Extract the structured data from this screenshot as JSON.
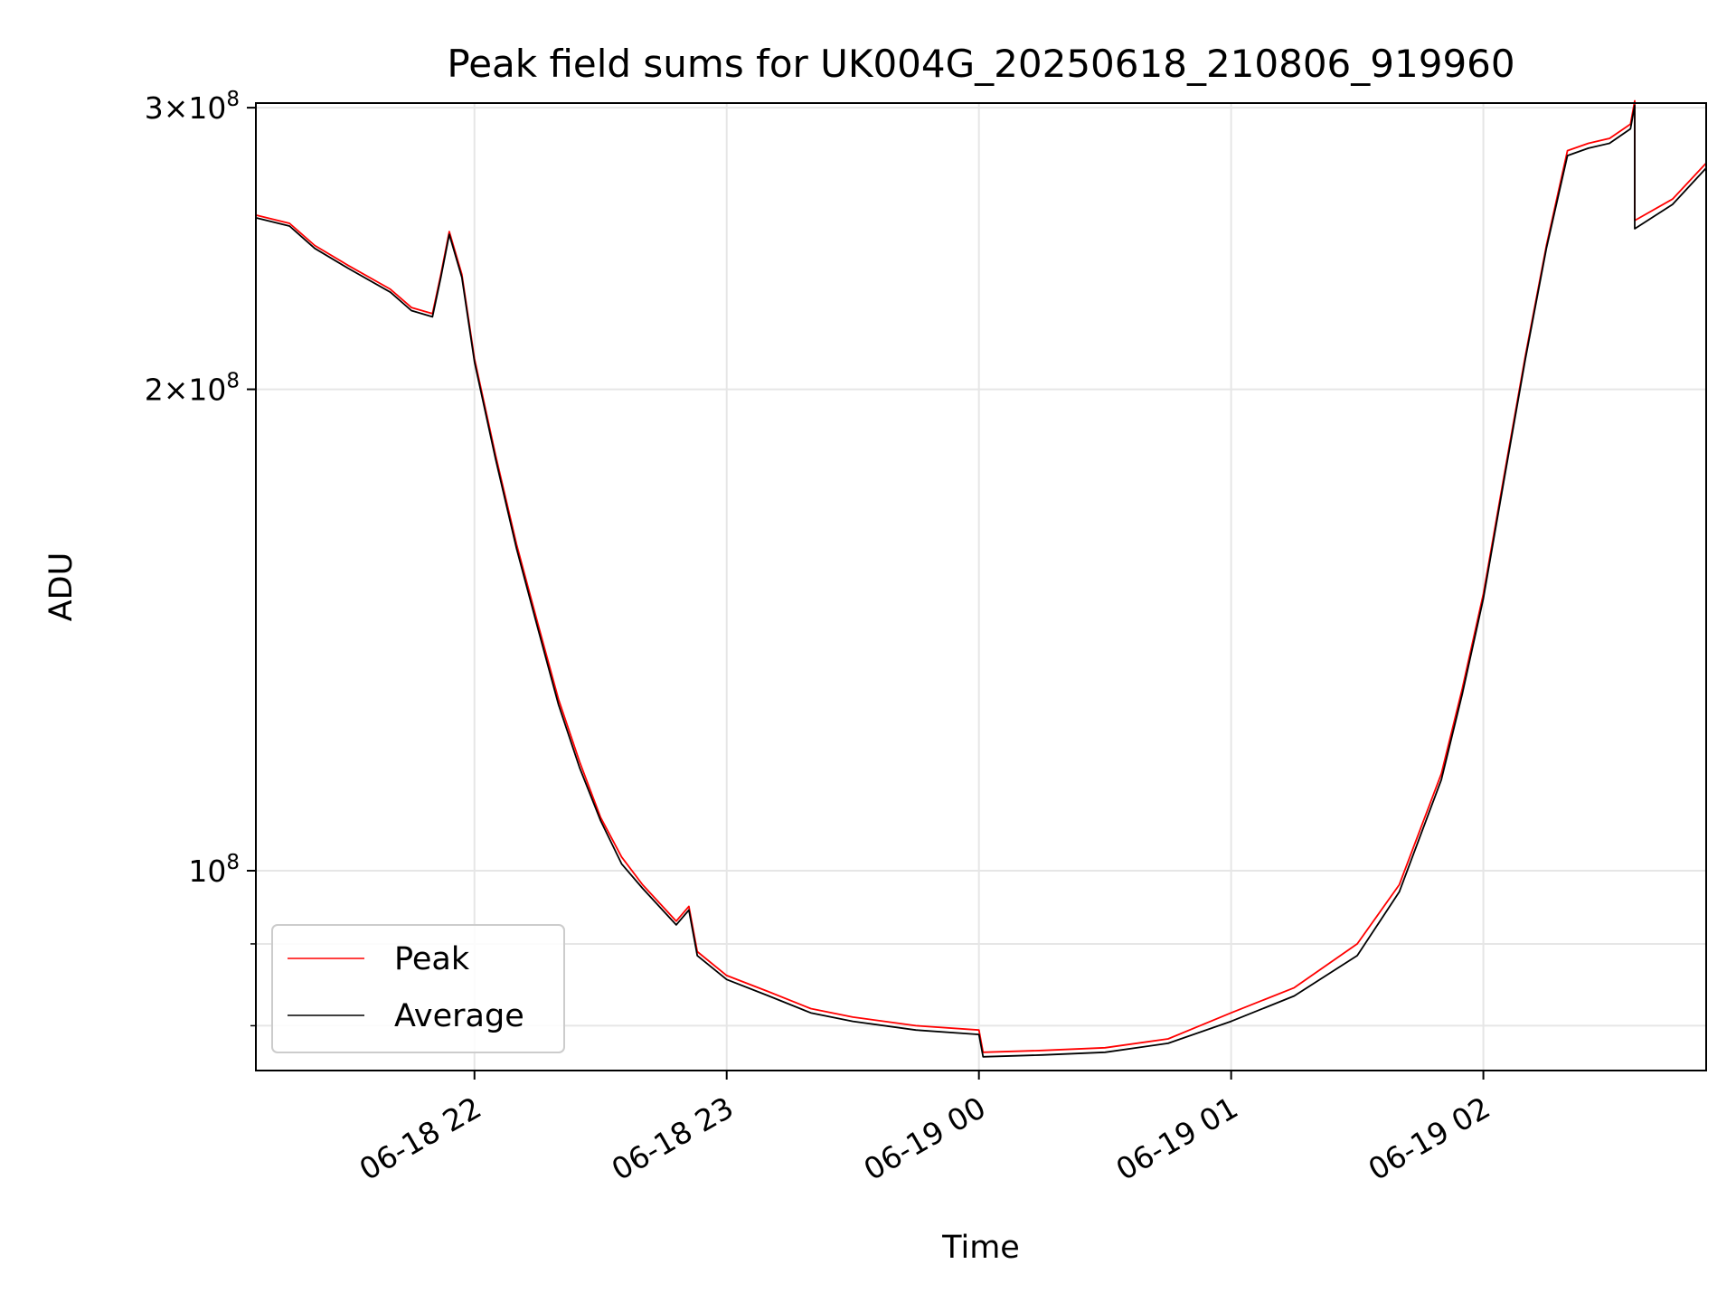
{
  "chart_data": {
    "type": "line",
    "title": "Peak field sums for UK004G_20250618_210806_919960",
    "xlabel": "Time",
    "ylabel": "ADU",
    "x_range": [
      "2025-06-18 21:08",
      "2025-06-19 02:53"
    ],
    "ylim": [
      75000000,
      302000000
    ],
    "y_scale": "log",
    "grid": true,
    "legend_position": "lower-left",
    "x_ticks": [
      {
        "value": "2025-06-18 22:00",
        "label": "06-18 22"
      },
      {
        "value": "2025-06-18 23:00",
        "label": "06-18 23"
      },
      {
        "value": "2025-06-19 00:00",
        "label": "06-19 00"
      },
      {
        "value": "2025-06-19 01:00",
        "label": "06-19 01"
      },
      {
        "value": "2025-06-19 02:00",
        "label": "06-19 02"
      }
    ],
    "y_ticks": [
      {
        "value": 100000000,
        "base": "10",
        "exponent": "8",
        "prefix": ""
      },
      {
        "value": 200000000,
        "base": "10",
        "exponent": "8",
        "prefix": "2×"
      },
      {
        "value": 300000000,
        "base": "10",
        "exponent": "8",
        "prefix": "3×"
      }
    ],
    "y_minor_ticks": [
      80000000,
      90000000
    ],
    "series": [
      {
        "name": "Peak",
        "color": "#ff0000",
        "points": [
          [
            "2025-06-18 21:08",
            257000000
          ],
          [
            "2025-06-18 21:16",
            254000000
          ],
          [
            "2025-06-18 21:22",
            246000000
          ],
          [
            "2025-06-18 21:30",
            239000000
          ],
          [
            "2025-06-18 21:40",
            231000000
          ],
          [
            "2025-06-18 21:45",
            225000000
          ],
          [
            "2025-06-18 21:50",
            223000000
          ],
          [
            "2025-06-18 21:52",
            236000000
          ],
          [
            "2025-06-18 21:54",
            251000000
          ],
          [
            "2025-06-18 21:57",
            236000000
          ],
          [
            "2025-06-18 22:00",
            209000000
          ],
          [
            "2025-06-18 22:05",
            182000000
          ],
          [
            "2025-06-18 22:10",
            160000000
          ],
          [
            "2025-06-18 22:15",
            143000000
          ],
          [
            "2025-06-18 22:20",
            128000000
          ],
          [
            "2025-06-18 22:25",
            117000000
          ],
          [
            "2025-06-18 22:30",
            108000000
          ],
          [
            "2025-06-18 22:35",
            102000000
          ],
          [
            "2025-06-18 22:40",
            98000000
          ],
          [
            "2025-06-18 22:48",
            93000000
          ],
          [
            "2025-06-18 22:51",
            95000000
          ],
          [
            "2025-06-18 22:53",
            89000000
          ],
          [
            "2025-06-18 23:00",
            86000000
          ],
          [
            "2025-06-18 23:10",
            84000000
          ],
          [
            "2025-06-18 23:20",
            82000000
          ],
          [
            "2025-06-18 23:30",
            81000000
          ],
          [
            "2025-06-18 23:45",
            80000000
          ],
          [
            "2025-06-19 00:00",
            79500000
          ],
          [
            "2025-06-19 00:01",
            77000000
          ],
          [
            "2025-06-19 00:15",
            77200000
          ],
          [
            "2025-06-19 00:30",
            77500000
          ],
          [
            "2025-06-19 00:45",
            78500000
          ],
          [
            "2025-06-19 01:00",
            81500000
          ],
          [
            "2025-06-19 01:15",
            84500000
          ],
          [
            "2025-06-19 01:30",
            90000000
          ],
          [
            "2025-06-19 01:40",
            98000000
          ],
          [
            "2025-06-19 01:50",
            115000000
          ],
          [
            "2025-06-19 01:55",
            130000000
          ],
          [
            "2025-06-19 02:00",
            149000000
          ],
          [
            "2025-06-19 02:05",
            177000000
          ],
          [
            "2025-06-19 02:10",
            210000000
          ],
          [
            "2025-06-19 02:15",
            246000000
          ],
          [
            "2025-06-19 02:20",
            282000000
          ],
          [
            "2025-06-19 02:25",
            285000000
          ],
          [
            "2025-06-19 02:30",
            287000000
          ],
          [
            "2025-06-19 02:35",
            293000000
          ],
          [
            "2025-06-19 02:36",
            303000000
          ],
          [
            "2025-06-19 02:36",
            255000000
          ],
          [
            "2025-06-19 02:45",
            263000000
          ],
          [
            "2025-06-19 02:53",
            277000000
          ]
        ]
      },
      {
        "name": "Average",
        "color": "#000000",
        "points": [
          [
            "2025-06-18 21:08",
            256000000
          ],
          [
            "2025-06-18 21:16",
            253000000
          ],
          [
            "2025-06-18 21:22",
            245000000
          ],
          [
            "2025-06-18 21:30",
            238000000
          ],
          [
            "2025-06-18 21:40",
            230000000
          ],
          [
            "2025-06-18 21:45",
            224000000
          ],
          [
            "2025-06-18 21:50",
            222000000
          ],
          [
            "2025-06-18 21:52",
            235000000
          ],
          [
            "2025-06-18 21:54",
            250000000
          ],
          [
            "2025-06-18 21:57",
            235000000
          ],
          [
            "2025-06-18 22:00",
            208000000
          ],
          [
            "2025-06-18 22:05",
            181000000
          ],
          [
            "2025-06-18 22:10",
            159000000
          ],
          [
            "2025-06-18 22:15",
            142000000
          ],
          [
            "2025-06-18 22:20",
            127000000
          ],
          [
            "2025-06-18 22:25",
            116000000
          ],
          [
            "2025-06-18 22:30",
            107500000
          ],
          [
            "2025-06-18 22:35",
            101000000
          ],
          [
            "2025-06-18 22:40",
            97500000
          ],
          [
            "2025-06-18 22:48",
            92500000
          ],
          [
            "2025-06-18 22:51",
            94500000
          ],
          [
            "2025-06-18 22:53",
            88500000
          ],
          [
            "2025-06-18 23:00",
            85500000
          ],
          [
            "2025-06-18 23:10",
            83500000
          ],
          [
            "2025-06-18 23:20",
            81500000
          ],
          [
            "2025-06-18 23:30",
            80500000
          ],
          [
            "2025-06-18 23:45",
            79500000
          ],
          [
            "2025-06-19 00:00",
            79000000
          ],
          [
            "2025-06-19 00:01",
            76500000
          ],
          [
            "2025-06-19 00:15",
            76700000
          ],
          [
            "2025-06-19 00:30",
            77000000
          ],
          [
            "2025-06-19 00:45",
            78000000
          ],
          [
            "2025-06-19 01:00",
            80500000
          ],
          [
            "2025-06-19 01:15",
            83500000
          ],
          [
            "2025-06-19 01:30",
            88500000
          ],
          [
            "2025-06-19 01:40",
            97000000
          ],
          [
            "2025-06-19 01:50",
            114000000
          ],
          [
            "2025-06-19 01:55",
            129000000
          ],
          [
            "2025-06-19 02:00",
            148000000
          ],
          [
            "2025-06-19 02:05",
            176000000
          ],
          [
            "2025-06-19 02:10",
            209000000
          ],
          [
            "2025-06-19 02:15",
            245000000
          ],
          [
            "2025-06-19 02:20",
            280000000
          ],
          [
            "2025-06-19 02:25",
            283000000
          ],
          [
            "2025-06-19 02:30",
            285000000
          ],
          [
            "2025-06-19 02:35",
            291000000
          ],
          [
            "2025-06-19 02:36",
            301000000
          ],
          [
            "2025-06-19 02:36",
            252000000
          ],
          [
            "2025-06-19 02:45",
            261000000
          ],
          [
            "2025-06-19 02:53",
            275000000
          ]
        ]
      }
    ]
  }
}
